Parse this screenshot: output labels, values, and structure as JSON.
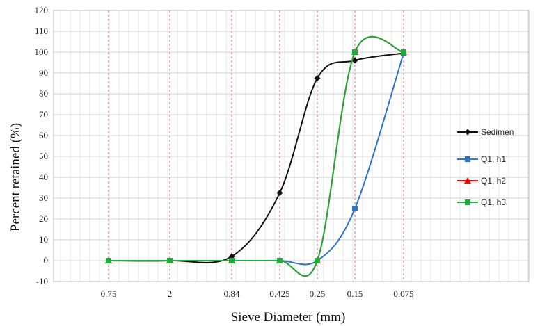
{
  "chart_data": {
    "type": "line",
    "title": "",
    "xlabel": "Sieve Diameter (mm)",
    "ylabel": "Percent retained (%)",
    "categories": [
      "0.75",
      "2",
      "0.84",
      "0.425",
      "0.25",
      "0.15",
      "0.075"
    ],
    "ylim": [
      -10,
      120
    ],
    "yticks": [
      -10,
      0,
      10,
      20,
      30,
      40,
      50,
      60,
      70,
      80,
      90,
      100,
      110,
      120
    ],
    "grid": true,
    "legend_position": "right",
    "series": [
      {
        "name": "Sedimen",
        "color": "#111111",
        "marker": "diamond",
        "values": [
          0,
          0,
          2,
          32.5,
          87.5,
          96,
          99.5
        ]
      },
      {
        "name": "Q1, h1",
        "color": "#2e75c6",
        "marker": "square",
        "values": [
          0,
          0,
          0,
          0,
          0,
          25,
          99.5
        ]
      },
      {
        "name": "Q1, h2",
        "color": "#ff0000",
        "marker": "triangle",
        "values": [
          0,
          0,
          0,
          0,
          0,
          100,
          100
        ]
      },
      {
        "name": "Q1, h3",
        "color": "#1faa3c",
        "marker": "square",
        "values": [
          0,
          0,
          0,
          0,
          0,
          100,
          100
        ]
      }
    ]
  }
}
